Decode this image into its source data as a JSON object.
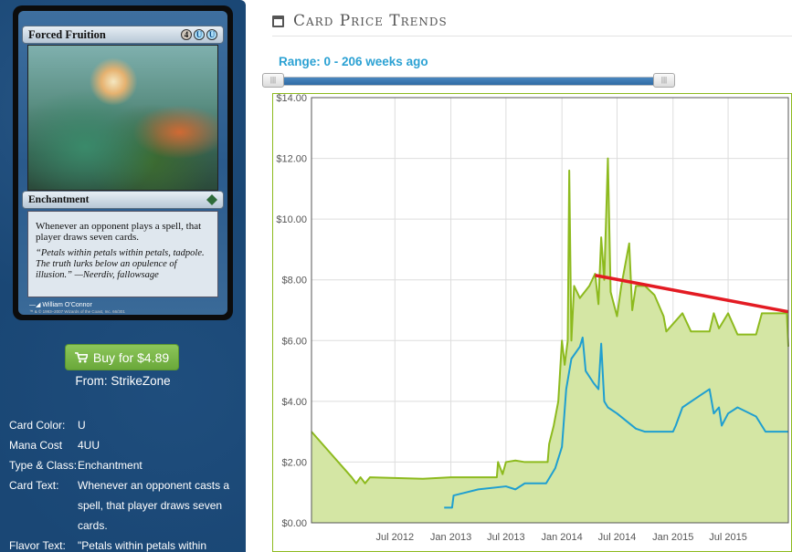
{
  "card": {
    "name": "Forced Fruition",
    "mana_symbols": [
      {
        "symbol": "4",
        "kind": "generic"
      },
      {
        "symbol": "U",
        "kind": "blue"
      },
      {
        "symbol": "U",
        "kind": "blue"
      }
    ],
    "type_line": "Enchantment",
    "rules_text": "Whenever an opponent plays a spell, that player draws seven cards.",
    "flavor_text": "“Petals within petals within petals, tadpole. The truth lurks below an opulence of illusion.” —Neerdiv, fallowsage",
    "artist": "William O’Connor",
    "copyright": "™ & © 1993–2007 Wizards of the Coast, Inc. 66/301"
  },
  "buy": {
    "label": "Buy for $4.89",
    "source": "From: StrikeZone"
  },
  "details": [
    {
      "label": "Card Color:",
      "value": "U"
    },
    {
      "label": "Mana Cost",
      "value": "4UU"
    },
    {
      "label": "Type & Class:",
      "value": "Enchantment"
    },
    {
      "label": "Card Text:",
      "value": "Whenever an opponent casts a spell, that player draws seven cards."
    },
    {
      "label": "Flavor Text:",
      "value": "\"Petals within petals within"
    }
  ],
  "header": {
    "title": "Card Price Trends",
    "icon": "calendar-icon"
  },
  "range": {
    "label": "Range: 0 - 206 weeks ago",
    "min_weeks": 0,
    "max_weeks": 206
  },
  "colors": {
    "panel_bg": "#1a4775",
    "buy_green": "#7ab648",
    "range_blue": "#2ba1d3",
    "series_green": "#8dba1e",
    "series_blue": "#1f9fd0",
    "trend_red": "#e31b23",
    "area_fill": "#d4e6a4"
  },
  "chart_data": {
    "type": "line",
    "title": "",
    "xlabel": "",
    "ylabel": "",
    "xlim": [
      "2011-10-01",
      "2016-01-15"
    ],
    "ylim": [
      0,
      14
    ],
    "yticks": [
      "$0.00",
      "$2.00",
      "$4.00",
      "$6.00",
      "$8.00",
      "$10.00",
      "$12.00",
      "$14.00"
    ],
    "ytick_values": [
      0,
      2,
      4,
      6,
      8,
      10,
      12,
      14
    ],
    "xticks": [
      {
        "label": "Jul 2012",
        "date": "2012-07-01"
      },
      {
        "label": "Jan 2013",
        "date": "2013-01-01"
      },
      {
        "label": "Jul 2013",
        "date": "2013-07-01"
      },
      {
        "label": "Jan 2014",
        "date": "2014-01-01"
      },
      {
        "label": "Jul 2014",
        "date": "2014-07-01"
      },
      {
        "label": "Jan 2015",
        "date": "2015-01-01"
      },
      {
        "label": "Jul 2015",
        "date": "2015-07-01"
      }
    ],
    "grid": true,
    "legend": "none",
    "series": [
      {
        "color": "#8dba1e",
        "filled": true,
        "points": [
          [
            "2011-10-01",
            3.0
          ],
          [
            "2012-02-10",
            1.5
          ],
          [
            "2012-02-25",
            1.3
          ],
          [
            "2012-03-10",
            1.5
          ],
          [
            "2012-03-25",
            1.3
          ],
          [
            "2012-04-10",
            1.5
          ],
          [
            "2012-10-01",
            1.45
          ],
          [
            "2013-01-01",
            1.5
          ],
          [
            "2013-06-01",
            1.5
          ],
          [
            "2013-06-05",
            2.0
          ],
          [
            "2013-06-20",
            1.6
          ],
          [
            "2013-07-01",
            2.0
          ],
          [
            "2013-08-01",
            2.05
          ],
          [
            "2013-09-01",
            2.0
          ],
          [
            "2013-11-15",
            2.0
          ],
          [
            "2013-11-20",
            2.6
          ],
          [
            "2013-12-05",
            3.2
          ],
          [
            "2013-12-20",
            4.0
          ],
          [
            "2014-01-01",
            6.0
          ],
          [
            "2014-01-10",
            5.2
          ],
          [
            "2014-01-20",
            6.0
          ],
          [
            "2014-01-25",
            11.6
          ],
          [
            "2014-02-01",
            6.0
          ],
          [
            "2014-02-10",
            7.8
          ],
          [
            "2014-03-01",
            7.4
          ],
          [
            "2014-04-01",
            7.8
          ],
          [
            "2014-04-20",
            8.2
          ],
          [
            "2014-05-01",
            7.2
          ],
          [
            "2014-05-10",
            9.4
          ],
          [
            "2014-05-20",
            8.0
          ],
          [
            "2014-06-01",
            12.0
          ],
          [
            "2014-06-10",
            7.6
          ],
          [
            "2014-07-01",
            6.8
          ],
          [
            "2014-07-15",
            7.8
          ],
          [
            "2014-08-10",
            9.2
          ],
          [
            "2014-08-20",
            7.0
          ],
          [
            "2014-09-01",
            7.8
          ],
          [
            "2014-10-01",
            7.8
          ],
          [
            "2014-11-01",
            7.5
          ],
          [
            "2014-12-01",
            6.8
          ],
          [
            "2014-12-10",
            6.3
          ],
          [
            "2015-02-01",
            6.9
          ],
          [
            "2015-03-01",
            6.3
          ],
          [
            "2015-05-01",
            6.3
          ],
          [
            "2015-05-15",
            6.9
          ],
          [
            "2015-06-01",
            6.4
          ],
          [
            "2015-07-01",
            6.9
          ],
          [
            "2015-08-01",
            6.2
          ],
          [
            "2015-10-01",
            6.2
          ],
          [
            "2015-10-20",
            6.9
          ],
          [
            "2016-01-10",
            6.9
          ],
          [
            "2016-01-15",
            5.8
          ]
        ]
      },
      {
        "color": "#1f9fd0",
        "filled": false,
        "points": [
          [
            "2012-12-10",
            0.5
          ],
          [
            "2013-01-05",
            0.5
          ],
          [
            "2013-01-10",
            0.9
          ],
          [
            "2013-04-01",
            1.1
          ],
          [
            "2013-07-01",
            1.2
          ],
          [
            "2013-08-01",
            1.1
          ],
          [
            "2013-09-01",
            1.3
          ],
          [
            "2013-11-10",
            1.3
          ],
          [
            "2013-12-10",
            1.8
          ],
          [
            "2014-01-01",
            2.5
          ],
          [
            "2014-01-15",
            4.4
          ],
          [
            "2014-02-01",
            5.4
          ],
          [
            "2014-03-01",
            5.8
          ],
          [
            "2014-03-10",
            6.1
          ],
          [
            "2014-03-20",
            5.0
          ],
          [
            "2014-04-15",
            4.6
          ],
          [
            "2014-05-01",
            4.4
          ],
          [
            "2014-05-10",
            5.9
          ],
          [
            "2014-05-20",
            4.0
          ],
          [
            "2014-06-01",
            3.8
          ],
          [
            "2014-07-01",
            3.6
          ],
          [
            "2014-09-01",
            3.1
          ],
          [
            "2014-10-01",
            3.0
          ],
          [
            "2015-01-01",
            3.0
          ],
          [
            "2015-01-10",
            3.2
          ],
          [
            "2015-02-01",
            3.8
          ],
          [
            "2015-04-01",
            4.2
          ],
          [
            "2015-05-01",
            4.4
          ],
          [
            "2015-05-15",
            3.6
          ],
          [
            "2015-06-01",
            3.8
          ],
          [
            "2015-06-10",
            3.2
          ],
          [
            "2015-07-01",
            3.6
          ],
          [
            "2015-08-01",
            3.8
          ],
          [
            "2015-10-01",
            3.5
          ],
          [
            "2015-11-01",
            3.0
          ],
          [
            "2016-01-15",
            3.0
          ]
        ]
      },
      {
        "color": "#e31b23",
        "filled": false,
        "points": [
          [
            "2014-04-20",
            8.15
          ],
          [
            "2016-01-15",
            6.95
          ]
        ]
      }
    ]
  }
}
